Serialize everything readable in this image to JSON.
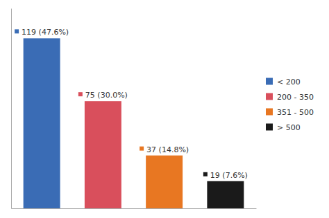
{
  "chart_data": {
    "type": "bar",
    "categories": [
      "< 200",
      "200 - 350",
      "351 - 500",
      "> 500"
    ],
    "values": [
      119,
      75,
      37,
      19
    ],
    "value_labels": [
      "119 (47.6%)",
      "75 (30.0%)",
      "37 (14.8%)",
      "19 (7.6%)"
    ],
    "data_labels": true,
    "colors": [
      "#3a6cb5",
      "#d94f5c",
      "#e87722",
      "#1a1a1a"
    ],
    "ylim": [
      0,
      140
    ],
    "tick_labels": false,
    "legend": "right",
    "grid": false
  }
}
